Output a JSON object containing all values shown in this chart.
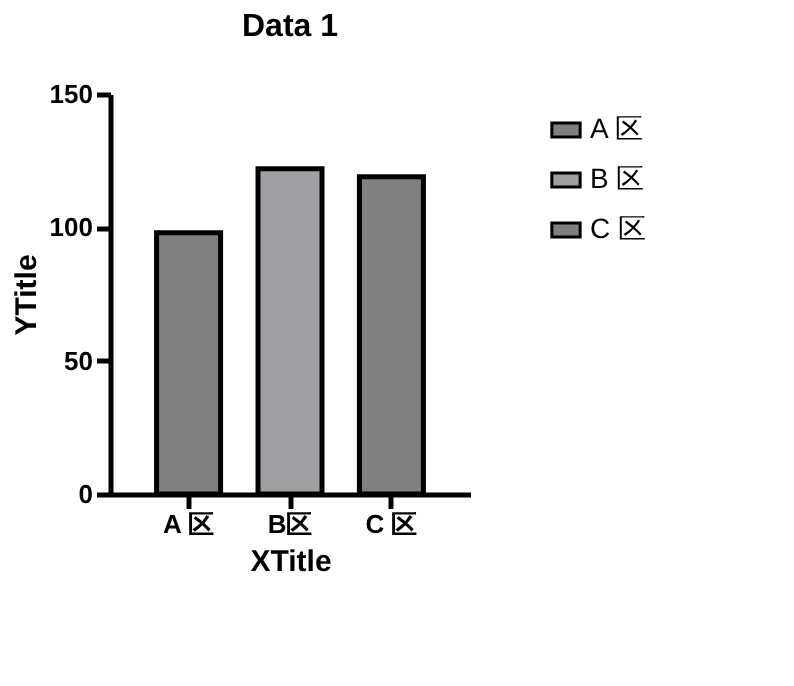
{
  "chart_data": {
    "type": "bar",
    "title": "Data 1",
    "xlabel": "XTitle",
    "ylabel": "YTitle",
    "categories": [
      "A 区",
      "B区",
      "C 区"
    ],
    "series": [
      {
        "name": "A 区",
        "color": "#808080",
        "values": [
          98,
          null,
          null
        ]
      },
      {
        "name": "B 区",
        "color": "#a0a0a4",
        "values": [
          null,
          122,
          null
        ]
      },
      {
        "name": "C 区",
        "color": "#808080",
        "values": [
          null,
          null,
          119
        ]
      }
    ],
    "ylim": [
      0,
      150
    ],
    "yticks": [
      0,
      50,
      100,
      150
    ],
    "grid": false,
    "legend": "right"
  }
}
